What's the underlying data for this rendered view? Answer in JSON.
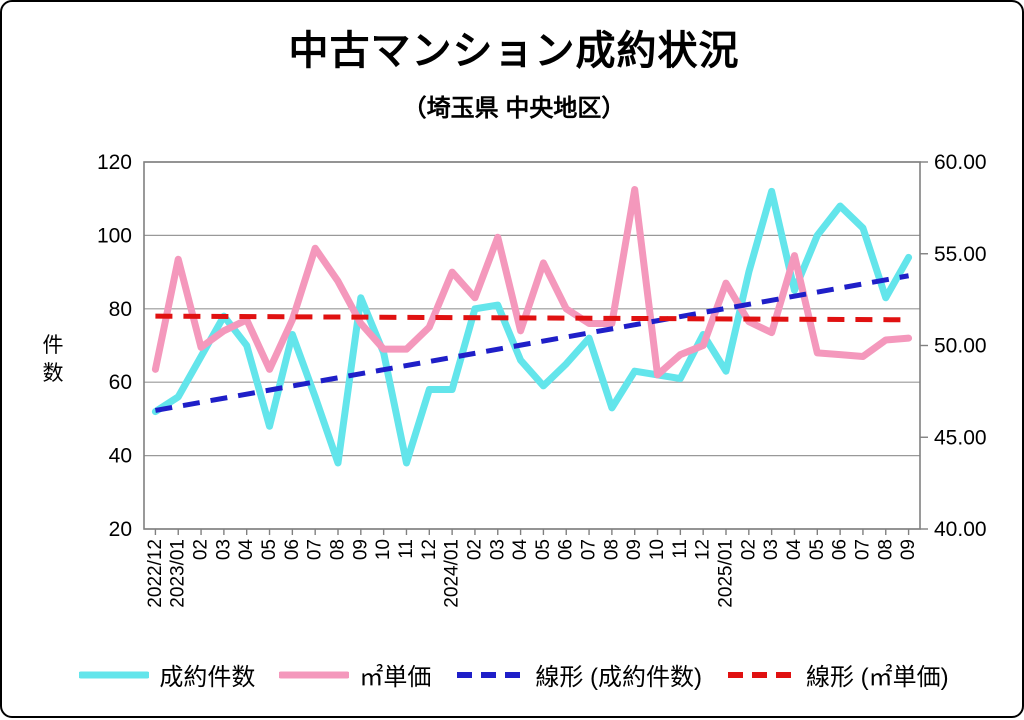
{
  "title": "中古マンション成約状況",
  "subtitle": "（埼玉県 中央地区）",
  "chart_data": {
    "type": "line",
    "categories": [
      "2022/12",
      "2023/01",
      "02",
      "03",
      "04",
      "05",
      "06",
      "07",
      "08",
      "09",
      "10",
      "11",
      "12",
      "2024/01",
      "02",
      "03",
      "04",
      "05",
      "06",
      "07",
      "08",
      "09",
      "10",
      "11",
      "12",
      "2025/01",
      "02",
      "03",
      "04",
      "05",
      "06",
      "07",
      "08",
      "09"
    ],
    "series": [
      {
        "name": "成約件数",
        "axis": "left",
        "style": "solid",
        "color": "#63E5EB",
        "values": [
          52,
          56,
          67,
          78,
          70,
          48,
          73,
          56,
          38,
          83,
          68,
          38,
          58,
          58,
          80,
          81,
          66,
          59,
          65,
          72,
          53,
          63,
          62,
          61,
          73,
          63,
          90,
          112,
          85,
          100,
          108,
          102,
          83,
          94
        ]
      },
      {
        "name": "㎡単価",
        "axis": "right",
        "style": "solid",
        "color": "#F498BC",
        "values": [
          48.7,
          54.7,
          49.9,
          50.8,
          51.4,
          48.7,
          51.4,
          55.3,
          53.5,
          51.2,
          49.8,
          49.8,
          51.0,
          54.0,
          52.6,
          55.9,
          50.8,
          54.5,
          52.0,
          51.2,
          51.2,
          58.5,
          48.4,
          49.5,
          50.0,
          53.4,
          51.3,
          50.7,
          54.9,
          49.6,
          49.5,
          49.4,
          50.3,
          50.4
        ]
      },
      {
        "name": "線形 (成約件数)",
        "axis": "left",
        "style": "dashed",
        "color": "#1F1FC8",
        "trend": [
          52.3,
          89.0
        ]
      },
      {
        "name": "線形 (㎡単価)",
        "axis": "right",
        "style": "dashed",
        "color": "#E01111",
        "trend": [
          51.6,
          51.4
        ]
      }
    ],
    "left_axis": {
      "title": "件数",
      "min": 20,
      "max": 120,
      "ticks": [
        120,
        100,
        80,
        60,
        40,
        20
      ]
    },
    "right_axis": {
      "min": 40,
      "max": 60,
      "ticks": [
        "60.00",
        "55.00",
        "50.00",
        "45.00",
        "40.00"
      ]
    },
    "grid": true,
    "legend_position": "bottom",
    "grid_color": "#999999",
    "border_color": "#808080"
  }
}
